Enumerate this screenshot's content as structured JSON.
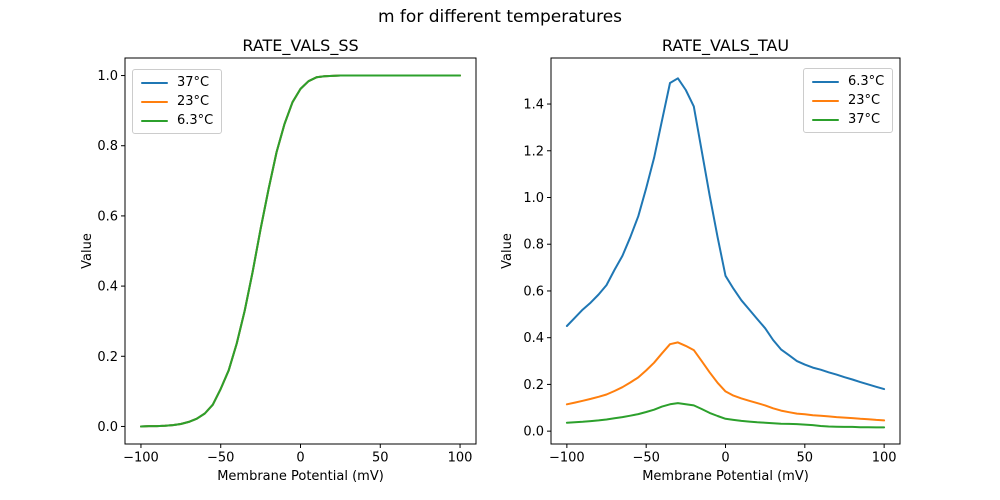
{
  "figure": {
    "suptitle": "m for different temperatures",
    "background_color": "#ffffff",
    "text_color": "#000000",
    "spine_color": "#000000",
    "legend_border_color": "#cccccc"
  },
  "chart_data": [
    {
      "type": "line",
      "title": "RATE_VALS_SS",
      "xlabel": "Membrane Potential (mV)",
      "ylabel": "Value",
      "grid": false,
      "legend_position": "upper-left",
      "xlim": [
        -110,
        110
      ],
      "ylim": [
        -0.05,
        1.05
      ],
      "xticks": {
        "values": [
          -100,
          -50,
          0,
          50,
          100
        ],
        "labels": [
          "−100",
          "−50",
          "0",
          "50",
          "100"
        ]
      },
      "yticks": {
        "values": [
          0.0,
          0.2,
          0.4,
          0.6,
          0.8,
          1.0
        ],
        "labels": [
          "0.0",
          "0.2",
          "0.4",
          "0.6",
          "0.8",
          "1.0"
        ]
      },
      "note": "All three temperature curves overlap exactly; only the last-drawn (6.3°C, green) curve is visible.",
      "x": [
        -100,
        -95,
        -90,
        -85,
        -80,
        -75,
        -70,
        -65,
        -60,
        -55,
        -50,
        -45,
        -40,
        -35,
        -30,
        -25,
        -20,
        -15,
        -10,
        -5,
        0,
        5,
        10,
        15,
        20,
        25,
        30,
        35,
        40,
        45,
        50,
        55,
        60,
        65,
        70,
        75,
        80,
        85,
        90,
        95,
        100
      ],
      "series": [
        {
          "name": "37°C",
          "color": "#1f77b4",
          "values": [
            0.0,
            0.001,
            0.001,
            0.002,
            0.004,
            0.007,
            0.013,
            0.022,
            0.037,
            0.062,
            0.107,
            0.16,
            0.236,
            0.33,
            0.44,
            0.563,
            0.677,
            0.782,
            0.862,
            0.924,
            0.962,
            0.984,
            0.995,
            0.998,
            0.999,
            1.0,
            1.0,
            1.0,
            1.0,
            1.0,
            1.0,
            1.0,
            1.0,
            1.0,
            1.0,
            1.0,
            1.0,
            1.0,
            1.0,
            1.0,
            1.0
          ]
        },
        {
          "name": "23°C",
          "color": "#ff7f0e",
          "values": [
            0.0,
            0.001,
            0.001,
            0.002,
            0.004,
            0.007,
            0.013,
            0.022,
            0.037,
            0.062,
            0.107,
            0.16,
            0.236,
            0.33,
            0.44,
            0.563,
            0.677,
            0.782,
            0.862,
            0.924,
            0.962,
            0.984,
            0.995,
            0.998,
            0.999,
            1.0,
            1.0,
            1.0,
            1.0,
            1.0,
            1.0,
            1.0,
            1.0,
            1.0,
            1.0,
            1.0,
            1.0,
            1.0,
            1.0,
            1.0,
            1.0
          ]
        },
        {
          "name": "6.3°C",
          "color": "#2ca02c",
          "values": [
            0.0,
            0.001,
            0.001,
            0.002,
            0.004,
            0.007,
            0.013,
            0.022,
            0.037,
            0.062,
            0.107,
            0.16,
            0.236,
            0.33,
            0.44,
            0.563,
            0.677,
            0.782,
            0.862,
            0.924,
            0.962,
            0.984,
            0.995,
            0.998,
            0.999,
            1.0,
            1.0,
            1.0,
            1.0,
            1.0,
            1.0,
            1.0,
            1.0,
            1.0,
            1.0,
            1.0,
            1.0,
            1.0,
            1.0,
            1.0,
            1.0
          ]
        }
      ]
    },
    {
      "type": "line",
      "title": "RATE_VALS_TAU",
      "xlabel": "Membrane Potential (mV)",
      "ylabel": "Value",
      "grid": false,
      "legend_position": "upper-right",
      "xlim": [
        -110,
        110
      ],
      "ylim": [
        -0.055,
        1.597
      ],
      "xticks": {
        "values": [
          -100,
          -50,
          0,
          50,
          100
        ],
        "labels": [
          "−100",
          "−50",
          "0",
          "50",
          "100"
        ]
      },
      "yticks": {
        "values": [
          0.0,
          0.2,
          0.4,
          0.6,
          0.8,
          1.0,
          1.2,
          1.4
        ],
        "labels": [
          "0.0",
          "0.2",
          "0.4",
          "0.6",
          "0.8",
          "1.0",
          "1.2",
          "1.4"
        ]
      },
      "note": "Bell-shaped time-constant curves peaking near −30 mV; 6.3°C peak ≈ 1.51, 23°C ≈ 0.38, 37°C ≈ 0.12.",
      "x": [
        -100,
        -95,
        -90,
        -85,
        -80,
        -75,
        -70,
        -65,
        -60,
        -55,
        -50,
        -45,
        -40,
        -35,
        -30,
        -25,
        -20,
        -15,
        -10,
        -5,
        0,
        5,
        10,
        15,
        20,
        25,
        30,
        35,
        40,
        45,
        50,
        55,
        60,
        65,
        70,
        75,
        80,
        85,
        90,
        95,
        100
      ],
      "series": [
        {
          "name": "6.3°C",
          "color": "#1f77b4",
          "values": [
            0.45,
            0.485,
            0.52,
            0.55,
            0.585,
            0.625,
            0.69,
            0.75,
            0.83,
            0.92,
            1.04,
            1.17,
            1.33,
            1.49,
            1.51,
            1.46,
            1.39,
            1.2,
            1.01,
            0.83,
            0.665,
            0.61,
            0.56,
            0.52,
            0.48,
            0.44,
            0.39,
            0.35,
            0.325,
            0.3,
            0.285,
            0.272,
            0.263,
            0.252,
            0.242,
            0.231,
            0.221,
            0.21,
            0.2,
            0.19,
            0.18
          ]
        },
        {
          "name": "23°C",
          "color": "#ff7f0e",
          "values": [
            0.115,
            0.122,
            0.13,
            0.138,
            0.147,
            0.157,
            0.172,
            0.188,
            0.208,
            0.23,
            0.26,
            0.293,
            0.333,
            0.372,
            0.38,
            0.365,
            0.347,
            0.3,
            0.252,
            0.207,
            0.17,
            0.152,
            0.14,
            0.13,
            0.12,
            0.11,
            0.098,
            0.088,
            0.081,
            0.075,
            0.072,
            0.068,
            0.066,
            0.063,
            0.06,
            0.058,
            0.056,
            0.053,
            0.051,
            0.048,
            0.046
          ]
        },
        {
          "name": "37°C",
          "color": "#2ca02c",
          "values": [
            0.036,
            0.038,
            0.04,
            0.043,
            0.046,
            0.05,
            0.055,
            0.06,
            0.066,
            0.073,
            0.082,
            0.092,
            0.105,
            0.115,
            0.12,
            0.115,
            0.11,
            0.095,
            0.078,
            0.065,
            0.053,
            0.048,
            0.044,
            0.041,
            0.038,
            0.036,
            0.034,
            0.032,
            0.031,
            0.03,
            0.028,
            0.026,
            0.022,
            0.02,
            0.019,
            0.018,
            0.018,
            0.017,
            0.017,
            0.016,
            0.016
          ]
        }
      ]
    }
  ]
}
